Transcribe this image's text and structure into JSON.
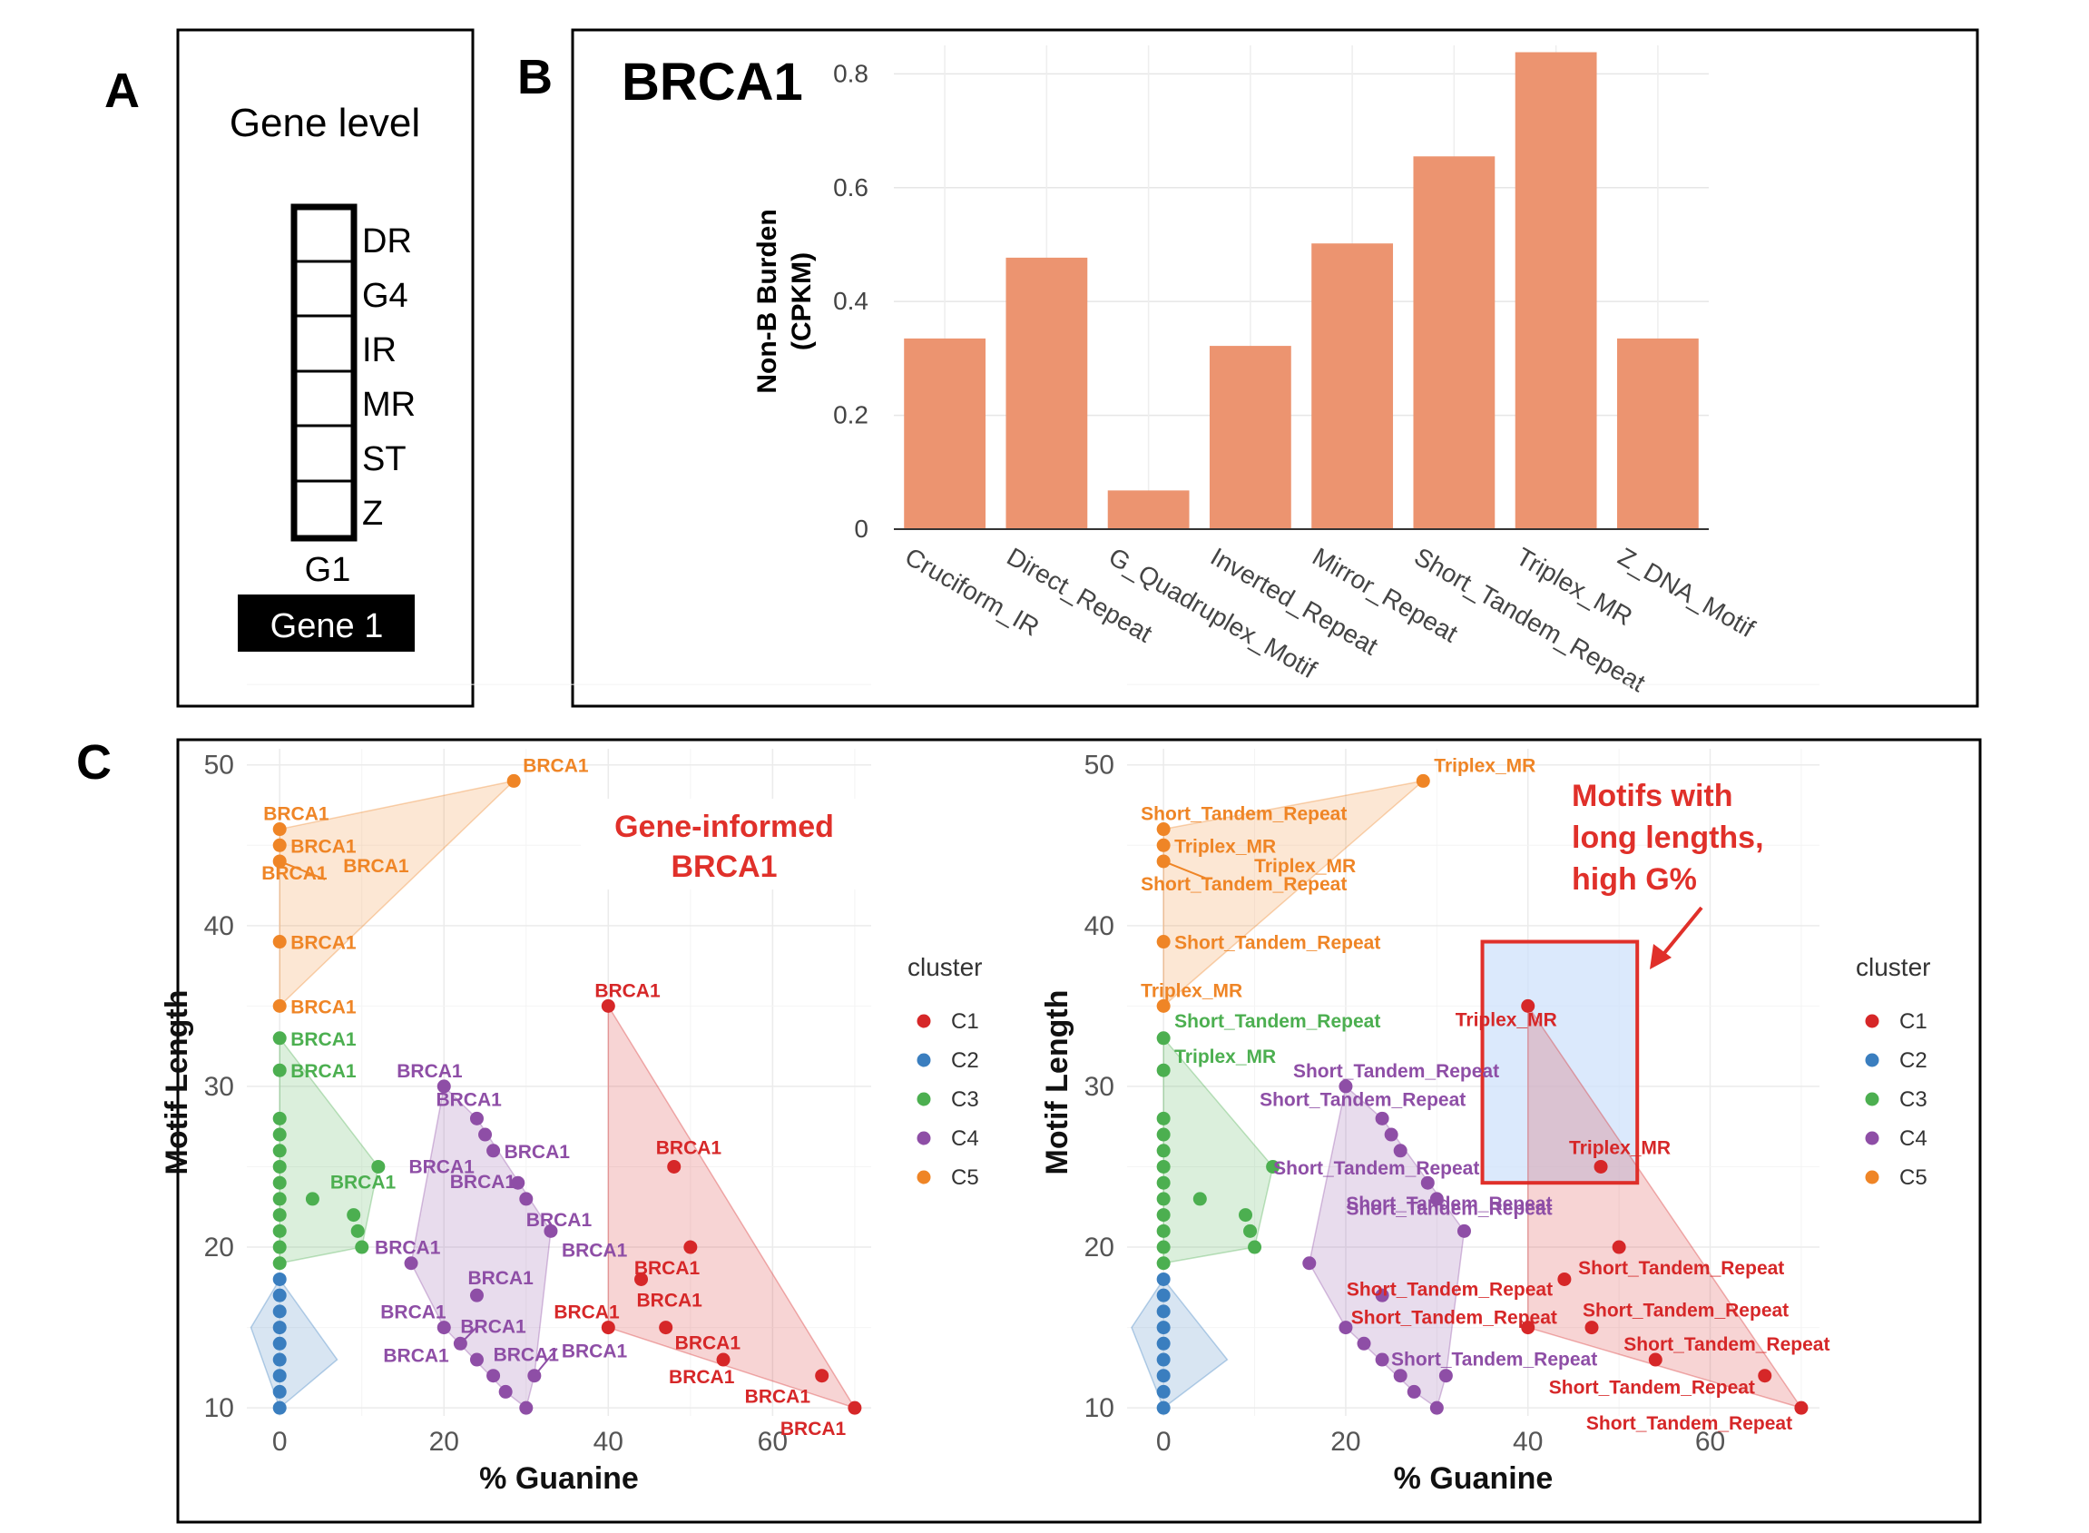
{
  "panel_letters": {
    "a": "A",
    "b": "B",
    "c": "C"
  },
  "panel_a": {
    "title": "Gene level",
    "box_labels": [
      "DR",
      "G4",
      "IR",
      "MR",
      "ST",
      "Z"
    ],
    "column_label": "G1",
    "gene_tag": "Gene 1"
  },
  "colors": {
    "bar": "#ec9470",
    "C1": "#d62728",
    "C2": "#3a7ebf",
    "C3": "#4caf50",
    "C4": "#8e4ea6",
    "C5": "#ef8526",
    "annotation": "#e0302a"
  },
  "chart_data": [
    {
      "type": "bar",
      "title": "BRCA1",
      "ylabel": "Non-B Burden (CPKM)",
      "ylabel_lines": [
        "Non-B Burden",
        "(CPKM)"
      ],
      "xlabel": "",
      "categories": [
        "Cruciform_IR",
        "Direct_Repeat",
        "G_Quadruplex_Motif",
        "Inverted_Repeat",
        "Mirror_Repeat",
        "Short_Tandem_Repeat",
        "Triplex_MR",
        "Z_DNA_Motif"
      ],
      "values": [
        0.335,
        0.477,
        0.068,
        0.322,
        0.502,
        0.655,
        0.838,
        0.335
      ],
      "ylim": [
        0,
        0.85
      ],
      "yticks": [
        "0",
        "0.2",
        "0.4",
        "0.6",
        "0.8"
      ],
      "grid": true
    },
    {
      "type": "scatter",
      "xlabel": "% Guanine",
      "ylabel": "Motif Length",
      "xlim": [
        -4,
        72
      ],
      "ylim": [
        9.5,
        51
      ],
      "xticks": [
        "0",
        "20",
        "40",
        "60"
      ],
      "yticks": [
        "10",
        "20",
        "30",
        "40",
        "50"
      ],
      "legend_title": "cluster",
      "legend": [
        "C1",
        "C2",
        "C3",
        "C4",
        "C5"
      ],
      "annotation": [
        "Gene-informed",
        "BRCA1"
      ],
      "series": [
        {
          "name": "C1",
          "points": [
            [
              40,
              35
            ],
            [
              48,
              25
            ],
            [
              50,
              20
            ],
            [
              44,
              18
            ],
            [
              40,
              15
            ],
            [
              47,
              15
            ],
            [
              54,
              13
            ],
            [
              66,
              12
            ],
            [
              70,
              10
            ]
          ]
        },
        {
          "name": "C2",
          "points": [
            [
              0,
              18
            ],
            [
              0,
              17
            ],
            [
              0,
              16
            ],
            [
              0,
              15
            ],
            [
              0,
              14
            ],
            [
              0,
              13
            ],
            [
              0,
              12
            ],
            [
              0,
              11
            ],
            [
              0,
              10
            ]
          ]
        },
        {
          "name": "C3",
          "points": [
            [
              0,
              33
            ],
            [
              0,
              31
            ],
            [
              0,
              28
            ],
            [
              0,
              27
            ],
            [
              0,
              26
            ],
            [
              0,
              25
            ],
            [
              0,
              24
            ],
            [
              0,
              23
            ],
            [
              0,
              22
            ],
            [
              0,
              21
            ],
            [
              0,
              20
            ],
            [
              0,
              19
            ],
            [
              12,
              25
            ],
            [
              4,
              23
            ],
            [
              9,
              22
            ],
            [
              9.5,
              21
            ],
            [
              10,
              20
            ]
          ]
        },
        {
          "name": "C4",
          "points": [
            [
              20,
              30
            ],
            [
              24,
              28
            ],
            [
              25,
              27
            ],
            [
              26,
              26
            ],
            [
              29,
              24
            ],
            [
              30,
              23
            ],
            [
              33,
              21
            ],
            [
              16,
              19
            ],
            [
              24,
              17
            ],
            [
              20,
              15
            ],
            [
              22,
              14
            ],
            [
              24,
              13
            ],
            [
              26,
              12
            ],
            [
              31,
              12
            ],
            [
              27.5,
              11
            ],
            [
              30,
              10
            ]
          ]
        },
        {
          "name": "C5",
          "points": [
            [
              28.5,
              49
            ],
            [
              0,
              46
            ],
            [
              0,
              45
            ],
            [
              0,
              44
            ],
            [
              0,
              39
            ],
            [
              0,
              35
            ]
          ]
        }
      ],
      "point_labels": [
        "BRCA1",
        "BRCA1",
        "BRCA1",
        "BRCA1",
        "BRCA1",
        "BRCA1",
        "BRCA1",
        "BRCA1",
        "BRCA1",
        "BRCA1",
        "BRCA1",
        "BRCA1",
        "BRCA1",
        "BRCA1",
        "BRCA1",
        "BRCA1",
        "BRCA1",
        "BRCA1",
        "BRCA1",
        "BRCA1",
        "BRCA1",
        "BRCA1",
        "BRCA1",
        "BRCA1",
        "BRCA1",
        "BRCA1",
        "BRCA1",
        "BRCA1",
        "BRCA1",
        "BRCA1",
        "BRCA1",
        "BRCA1",
        "BRCA1"
      ]
    },
    {
      "type": "scatter",
      "xlabel": "% Guanine",
      "ylabel": "Motif Length",
      "xlim": [
        -4,
        72
      ],
      "ylim": [
        9.5,
        51
      ],
      "xticks": [
        "0",
        "20",
        "40",
        "60"
      ],
      "yticks": [
        "10",
        "20",
        "30",
        "40",
        "50"
      ],
      "legend_title": "cluster",
      "legend": [
        "C1",
        "C2",
        "C3",
        "C4",
        "C5"
      ],
      "annotation": [
        "Motifs with",
        "long lengths,",
        "high G%"
      ],
      "highlight_region": {
        "x": [
          35,
          52
        ],
        "y": [
          24,
          39
        ]
      },
      "series": [
        {
          "name": "C1",
          "points": [
            [
              40,
              35
            ],
            [
              48,
              25
            ],
            [
              50,
              20
            ],
            [
              44,
              18
            ],
            [
              40,
              15
            ],
            [
              47,
              15
            ],
            [
              54,
              13
            ],
            [
              66,
              12
            ],
            [
              70,
              10
            ]
          ]
        },
        {
          "name": "C2",
          "points": [
            [
              0,
              18
            ],
            [
              0,
              17
            ],
            [
              0,
              16
            ],
            [
              0,
              15
            ],
            [
              0,
              14
            ],
            [
              0,
              13
            ],
            [
              0,
              12
            ],
            [
              0,
              11
            ],
            [
              0,
              10
            ]
          ]
        },
        {
          "name": "C3",
          "points": [
            [
              0,
              33
            ],
            [
              0,
              31
            ],
            [
              0,
              28
            ],
            [
              0,
              27
            ],
            [
              0,
              26
            ],
            [
              0,
              25
            ],
            [
              0,
              24
            ],
            [
              0,
              23
            ],
            [
              0,
              22
            ],
            [
              0,
              21
            ],
            [
              0,
              20
            ],
            [
              0,
              19
            ],
            [
              12,
              25
            ],
            [
              4,
              23
            ],
            [
              9,
              22
            ],
            [
              9.5,
              21
            ],
            [
              10,
              20
            ]
          ]
        },
        {
          "name": "C4",
          "points": [
            [
              20,
              30
            ],
            [
              24,
              28
            ],
            [
              25,
              27
            ],
            [
              26,
              26
            ],
            [
              29,
              24
            ],
            [
              30,
              23
            ],
            [
              33,
              21
            ],
            [
              16,
              19
            ],
            [
              24,
              17
            ],
            [
              20,
              15
            ],
            [
              22,
              14
            ],
            [
              24,
              13
            ],
            [
              26,
              12
            ],
            [
              31,
              12
            ],
            [
              27.5,
              11
            ],
            [
              30,
              10
            ]
          ]
        },
        {
          "name": "C5",
          "points": [
            [
              28.5,
              49
            ],
            [
              0,
              46
            ],
            [
              0,
              45
            ],
            [
              0,
              44
            ],
            [
              0,
              39
            ],
            [
              0,
              35
            ]
          ]
        }
      ],
      "point_labels": [
        "Triplex_MR",
        "Short_Tandem_Repeat",
        "Triplex_MR",
        "Short_Tandem_Repeat",
        "Triplex_MR",
        "Short_Tandem_Repeat",
        "Triplex_MR",
        "Short_Tandem_Repeat",
        "Triplex_MR",
        "Short_Tandem_Repeat",
        "Short_Tandem_Repeat",
        "Short_Tandem_Repeat",
        "Short_Tandem_Repeat",
        "Short_Tandem_Repeat",
        "Triplex_MR",
        "Triplex_MR",
        "Short_Tandem_Repeat",
        "Short_Tandem_Repeat",
        "Short_Tandem_Repeat",
        "Short_Tandem_Repeat",
        "Short_Tandem_Repeat",
        "Short_Tandem_Repeat",
        "Short_Tandem_Repeat",
        "Short_Tandem_Repeat",
        "Short_Tandem_Repeat"
      ]
    }
  ]
}
